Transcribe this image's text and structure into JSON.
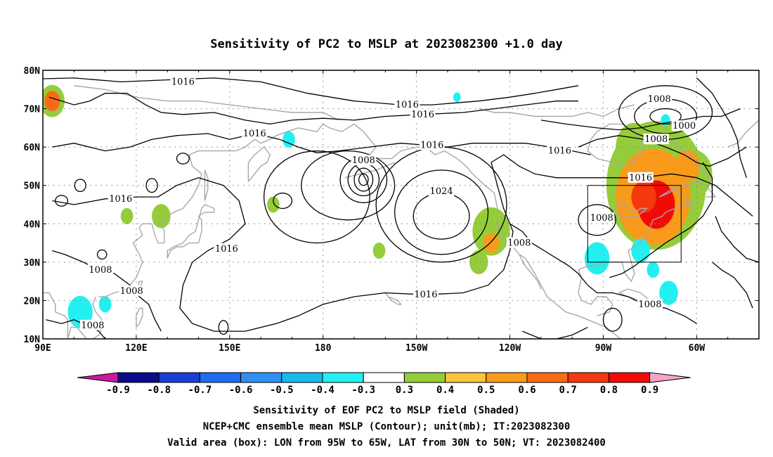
{
  "title": "Sensitivity of PC2 to MSLP at 2023082300 +1.0 day",
  "map": {
    "x_ticks": [
      "90E",
      "120E",
      "150E",
      "180",
      "150W",
      "120W",
      "90W",
      "60W"
    ],
    "y_ticks": [
      "80N",
      "70N",
      "60N",
      "50N",
      "40N",
      "30N",
      "20N",
      "10N"
    ],
    "grid": "dotted"
  },
  "contour_labels": [
    {
      "text": "1016",
      "lon": 135,
      "lat": 77
    },
    {
      "text": "1016",
      "lon": 207,
      "lat": 71
    },
    {
      "text": "1016",
      "lon": 212,
      "lat": 68.5
    },
    {
      "text": "1016",
      "lon": 158,
      "lat": 63.5
    },
    {
      "text": "1016",
      "lon": 115,
      "lat": 46.5
    },
    {
      "text": "1016",
      "lon": 149,
      "lat": 33.5
    },
    {
      "text": "1016",
      "lon": 215,
      "lat": 60.5
    },
    {
      "text": "1016",
      "lon": 256,
      "lat": 59
    },
    {
      "text": "1016",
      "lon": 213,
      "lat": 21.5
    },
    {
      "text": "1016",
      "lon": 282,
      "lat": 52
    },
    {
      "text": "1008",
      "lon": 193,
      "lat": 56.5
    },
    {
      "text": "1008",
      "lon": 288,
      "lat": 72.5
    },
    {
      "text": "1008",
      "lon": 287,
      "lat": 62
    },
    {
      "text": "1008",
      "lon": 243,
      "lat": 35
    },
    {
      "text": "1008",
      "lon": 269.5,
      "lat": 41.5
    },
    {
      "text": "1008",
      "lon": 285,
      "lat": 19
    },
    {
      "text": "1008",
      "lon": 108.5,
      "lat": 28
    },
    {
      "text": "1008",
      "lon": 118.5,
      "lat": 22.5
    },
    {
      "text": "1008",
      "lon": 106,
      "lat": 13.5
    },
    {
      "text": "1000",
      "lon": 296,
      "lat": 65.5
    },
    {
      "text": "1024",
      "lon": 218,
      "lat": 48.5
    }
  ],
  "valid_box": {
    "lon_from": "95W",
    "lon_to": "65W",
    "lat_from": "30N",
    "lat_to": "50N"
  },
  "colorbar": {
    "labels": [
      "-0.9",
      "-0.8",
      "-0.7",
      "-0.6",
      "-0.5",
      "-0.4",
      "-0.3",
      "0.3",
      "0.4",
      "0.5",
      "0.6",
      "0.7",
      "0.8",
      "0.9"
    ],
    "colors": [
      "#0b0b8c",
      "#1a3fd6",
      "#1f6cf0",
      "#2f8ff2",
      "#17b8ee",
      "#22f0f0",
      "#ffffff",
      "#95cd3a",
      "#f9c53a",
      "#f99a1a",
      "#f86a16",
      "#f5380e",
      "#f20a06"
    ],
    "low_end_color": "#c81b9d",
    "high_end_color": "#f6a4c8"
  },
  "captions": [
    "Sensitivity of EOF PC2 to MSLP field (Shaded)",
    "NCEP+CMC ensemble mean MSLP (Contour); unit(mb); IT:2023082300",
    "Valid area (box): LON from 95W to 65W, LAT from 30N to 50N; VT: 2023082400"
  ],
  "shading": {
    "positive_high": [
      {
        "lon": 287,
        "lat": 45,
        "r": 6,
        "level": "0.8"
      },
      {
        "lon": 283,
        "lat": 47,
        "r": 4,
        "level": "0.7"
      }
    ],
    "positive_mid": [
      {
        "lon": 286,
        "lat": 47,
        "r": 12,
        "level": "0.5"
      },
      {
        "lon": 297,
        "lat": 55,
        "r": 4,
        "level": "0.5"
      },
      {
        "lon": 93,
        "lat": 72,
        "r": 2.5,
        "level": "0.6"
      },
      {
        "lon": 234,
        "lat": 35,
        "r": 2.5,
        "level": "0.5"
      }
    ],
    "positive_low": [
      {
        "lon": 287,
        "lat": 50,
        "r": 16,
        "level": "0.3"
      },
      {
        "lon": 280,
        "lat": 60,
        "r": 6,
        "level": "0.3"
      },
      {
        "lon": 299,
        "lat": 53,
        "r": 6,
        "level": "0.3"
      },
      {
        "lon": 93,
        "lat": 72,
        "r": 4,
        "level": "0.3"
      },
      {
        "lon": 234,
        "lat": 38,
        "r": 6,
        "level": "0.3"
      },
      {
        "lon": 198,
        "lat": 33,
        "r": 2,
        "level": "0.3"
      },
      {
        "lon": 128,
        "lat": 42,
        "r": 3,
        "level": "0.3"
      },
      {
        "lon": 117,
        "lat": 42,
        "r": 2,
        "level": "0.3"
      },
      {
        "lon": 164,
        "lat": 45,
        "r": 2,
        "level": "0.3"
      },
      {
        "lon": 230,
        "lat": 30,
        "r": 3,
        "level": "0.3"
      }
    ],
    "negative": [
      {
        "lon": 268,
        "lat": 31,
        "r": 4,
        "level": "-0.4"
      },
      {
        "lon": 282,
        "lat": 33,
        "r": 3,
        "level": "-0.4"
      },
      {
        "lon": 291,
        "lat": 22,
        "r": 3,
        "level": "-0.4"
      },
      {
        "lon": 286,
        "lat": 28,
        "r": 2,
        "level": "-0.4"
      },
      {
        "lon": 102,
        "lat": 17,
        "r": 4,
        "level": "-0.4"
      },
      {
        "lon": 110,
        "lat": 19,
        "r": 2,
        "level": "-0.4"
      },
      {
        "lon": 169,
        "lat": 62,
        "r": 2,
        "level": "-0.4"
      },
      {
        "lon": 223,
        "lat": 73,
        "r": 1.2,
        "level": "-0.4"
      },
      {
        "lon": 290,
        "lat": 67,
        "r": 1.5,
        "level": "-0.4"
      }
    ]
  }
}
